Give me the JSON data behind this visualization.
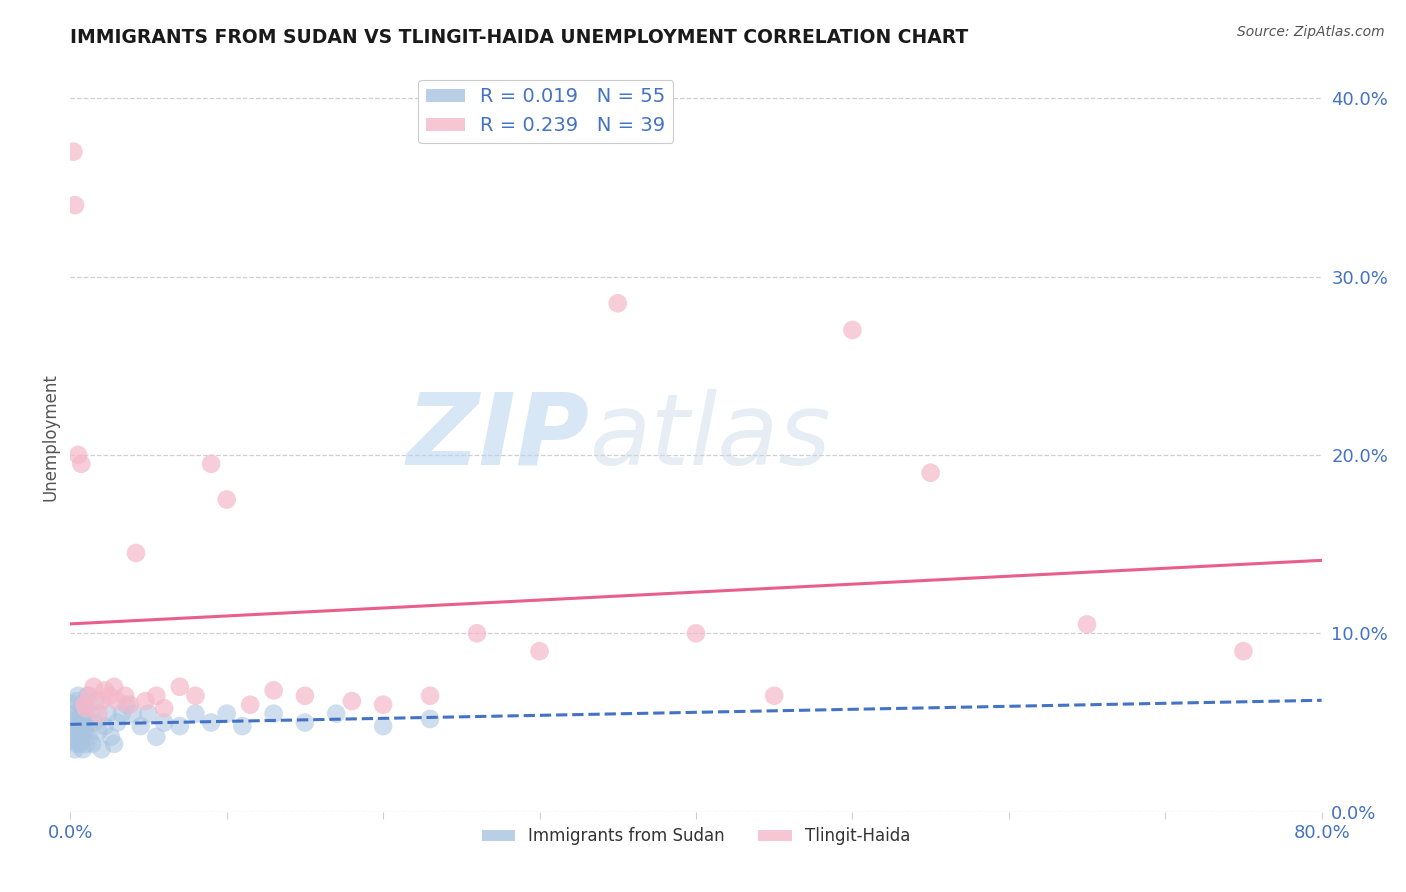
{
  "title": "IMMIGRANTS FROM SUDAN VS TLINGIT-HAIDA UNEMPLOYMENT CORRELATION CHART",
  "source": "Source: ZipAtlas.com",
  "ylabel": "Unemployment",
  "xlim": [
    -0.01,
    0.82
  ],
  "ylim": [
    -0.01,
    0.43
  ],
  "plot_xlim": [
    0.0,
    0.8
  ],
  "plot_ylim": [
    0.0,
    0.42
  ],
  "xticks": [
    0.0,
    0.1,
    0.2,
    0.3,
    0.4,
    0.5,
    0.6,
    0.7,
    0.8
  ],
  "yticks_right": [
    0.0,
    0.1,
    0.2,
    0.3,
    0.4
  ],
  "yticklabels_right": [
    "0.0%",
    "10.0%",
    "20.0%",
    "30.0%",
    "40.0%"
  ],
  "legend_top_labels": [
    "R = 0.019   N = 55",
    "R = 0.239   N = 39"
  ],
  "sudan_scatter_x": [
    0.001,
    0.002,
    0.002,
    0.003,
    0.003,
    0.003,
    0.004,
    0.004,
    0.004,
    0.005,
    0.005,
    0.005,
    0.006,
    0.006,
    0.007,
    0.007,
    0.007,
    0.008,
    0.008,
    0.008,
    0.009,
    0.009,
    0.01,
    0.01,
    0.01,
    0.011,
    0.012,
    0.013,
    0.014,
    0.015,
    0.016,
    0.018,
    0.02,
    0.022,
    0.024,
    0.026,
    0.028,
    0.03,
    0.033,
    0.036,
    0.04,
    0.045,
    0.05,
    0.055,
    0.06,
    0.07,
    0.08,
    0.09,
    0.1,
    0.11,
    0.13,
    0.15,
    0.17,
    0.2,
    0.23
  ],
  "sudan_scatter_y": [
    0.05,
    0.04,
    0.06,
    0.035,
    0.045,
    0.055,
    0.038,
    0.048,
    0.062,
    0.042,
    0.052,
    0.065,
    0.038,
    0.055,
    0.042,
    0.048,
    0.058,
    0.035,
    0.05,
    0.06,
    0.045,
    0.055,
    0.038,
    0.048,
    0.058,
    0.065,
    0.042,
    0.055,
    0.038,
    0.05,
    0.062,
    0.045,
    0.035,
    0.048,
    0.055,
    0.042,
    0.038,
    0.05,
    0.055,
    0.06,
    0.055,
    0.048,
    0.055,
    0.042,
    0.05,
    0.048,
    0.055,
    0.05,
    0.055,
    0.048,
    0.055,
    0.05,
    0.055,
    0.048,
    0.052
  ],
  "tlingit_scatter_x": [
    0.002,
    0.003,
    0.005,
    0.007,
    0.009,
    0.01,
    0.012,
    0.015,
    0.018,
    0.02,
    0.022,
    0.025,
    0.028,
    0.03,
    0.035,
    0.038,
    0.042,
    0.048,
    0.055,
    0.06,
    0.07,
    0.08,
    0.09,
    0.1,
    0.115,
    0.13,
    0.15,
    0.18,
    0.2,
    0.23,
    0.26,
    0.3,
    0.35,
    0.4,
    0.45,
    0.5,
    0.55,
    0.65,
    0.75
  ],
  "tlingit_scatter_y": [
    0.37,
    0.34,
    0.2,
    0.195,
    0.06,
    0.058,
    0.065,
    0.07,
    0.055,
    0.062,
    0.068,
    0.065,
    0.07,
    0.062,
    0.065,
    0.06,
    0.145,
    0.062,
    0.065,
    0.058,
    0.07,
    0.065,
    0.195,
    0.175,
    0.06,
    0.068,
    0.065,
    0.062,
    0.06,
    0.065,
    0.1,
    0.09,
    0.285,
    0.1,
    0.065,
    0.27,
    0.19,
    0.105,
    0.09
  ],
  "sudan_color": "#a8c4e0",
  "tlingit_color": "#f4b8ca",
  "sudan_line_color": "#4472c4",
  "tlingit_line_color": "#e8608a",
  "watermark_zip": "ZIP",
  "watermark_atlas": "atlas",
  "background_color": "#ffffff",
  "grid_color": "#d0d0d0",
  "tick_color": "#4472c4",
  "title_color": "#1a1a1a",
  "source_color": "#555555"
}
